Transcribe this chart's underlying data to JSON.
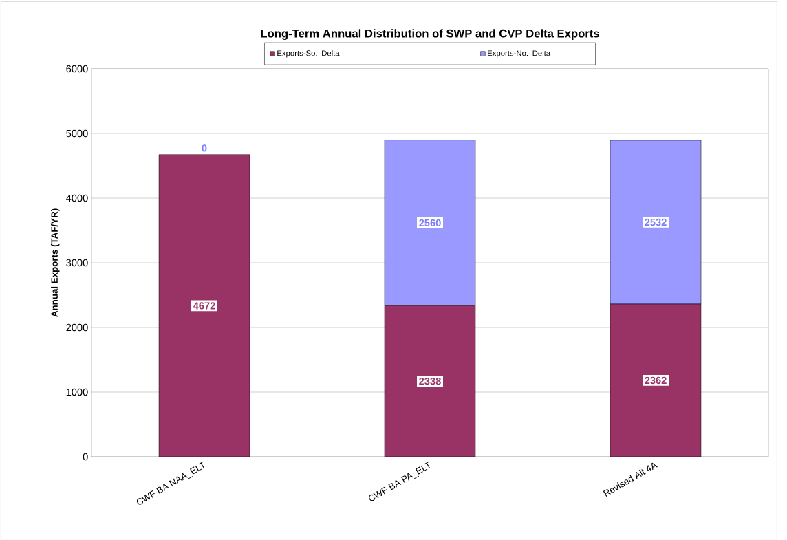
{
  "chart_data": {
    "type": "bar",
    "title": "Long-Term Annual Distribution of SWP and CVP Delta Exports",
    "ylabel": "Annual Exports (TAF/YR)",
    "categories": [
      "CWF BA NAA_ELT",
      "CWF BA PA_ELT",
      "Revised Alt 4A"
    ],
    "series": [
      {
        "name": "Exports-So. Delta",
        "color": "#993366",
        "values": [
          4672,
          2338,
          2362
        ]
      },
      {
        "name": "Exports-No. Delta",
        "color": "#9999ff",
        "values": [
          0,
          2560,
          2532
        ]
      }
    ],
    "stacked": true,
    "data_labels": true,
    "ylim": [
      0,
      6000
    ],
    "yticks": [
      0,
      1000,
      2000,
      3000,
      4000,
      5000,
      6000
    ],
    "grid": "y",
    "legend": "top"
  }
}
